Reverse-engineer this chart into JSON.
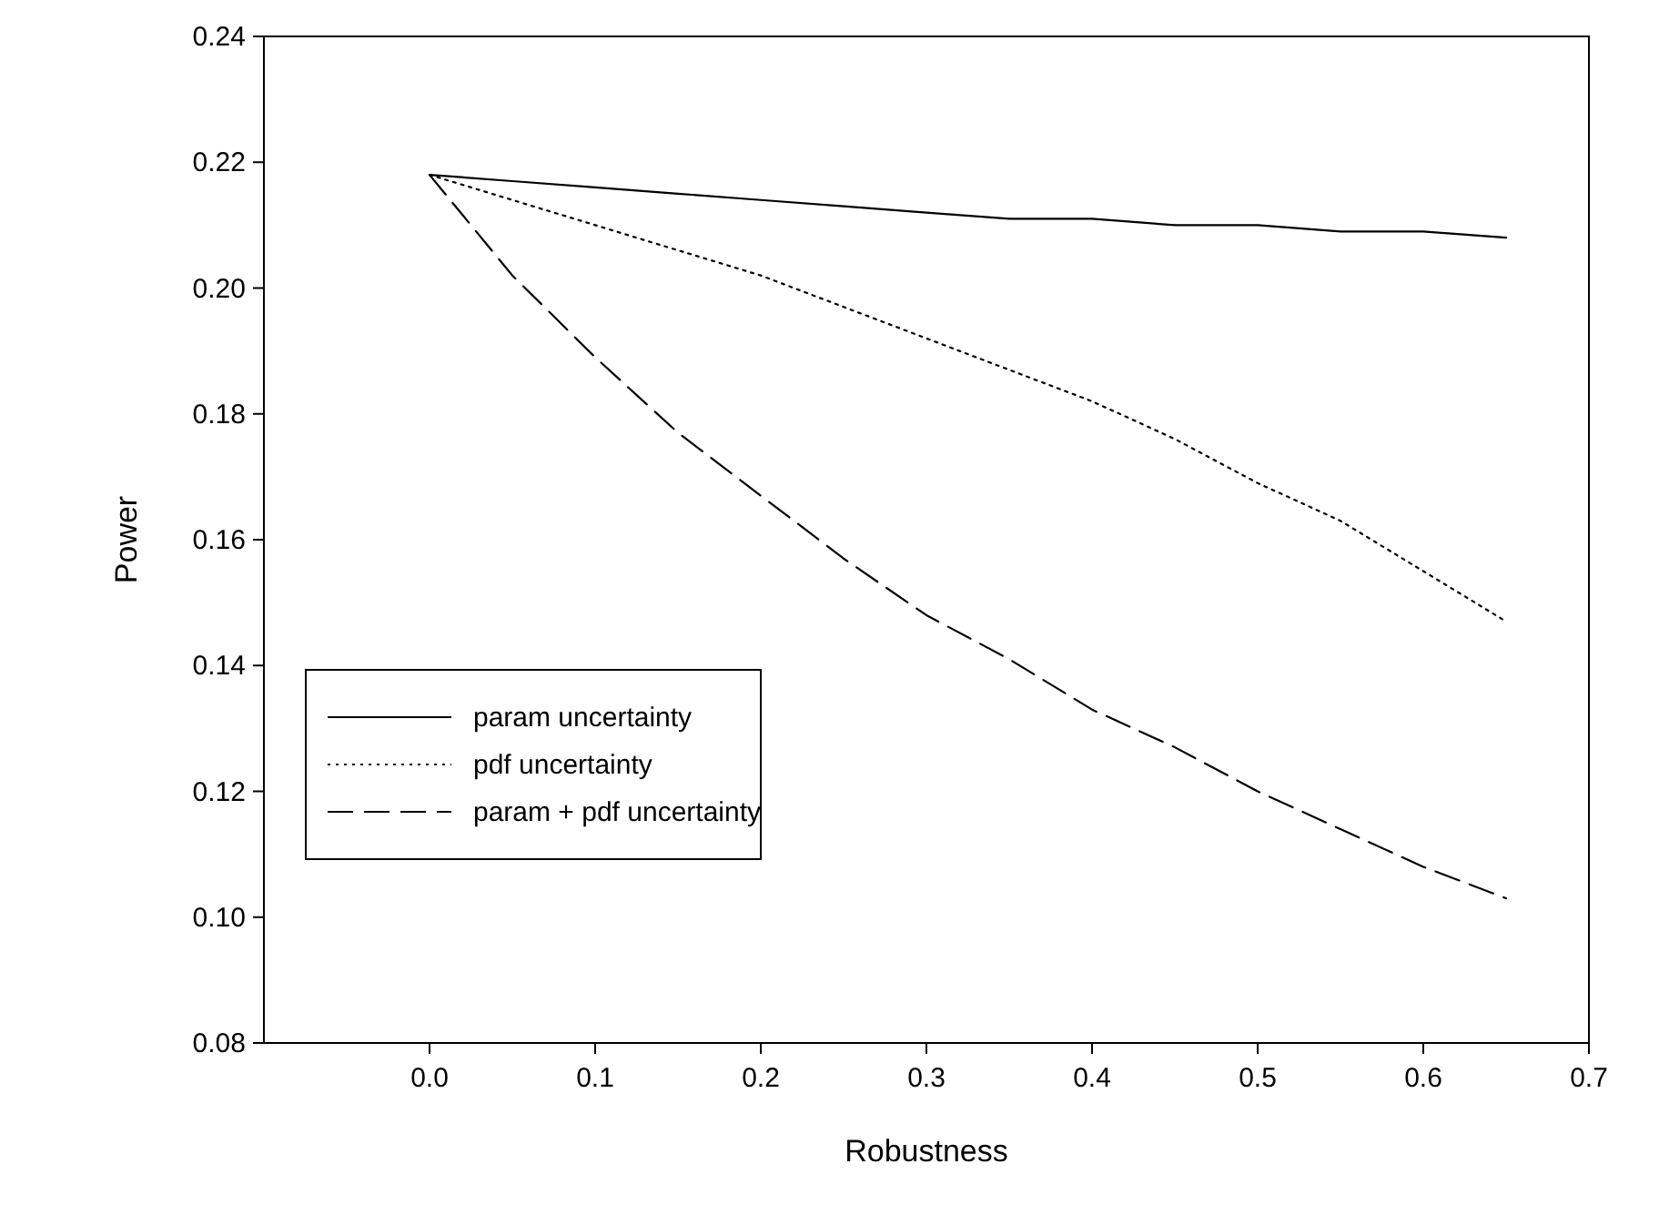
{
  "chart_data": {
    "type": "line",
    "xlabel": "Robustness",
    "ylabel": "Power",
    "xlim": [
      -0.1,
      0.7
    ],
    "xticks": [
      {
        "value": 0,
        "label": "0.0"
      },
      0.1,
      0.2,
      0.3,
      0.4,
      0.5,
      0.6,
      0.7
    ],
    "ylim": [
      0.08,
      0.24
    ],
    "yticks": [
      {
        "value": 0.08,
        "label": "0.08"
      },
      {
        "value": 0.1,
        "label": "0.10"
      },
      {
        "value": 0.12,
        "label": "0.12"
      },
      {
        "value": 0.14,
        "label": "0.14"
      },
      {
        "value": 0.16,
        "label": "0.16"
      },
      {
        "value": 0.18,
        "label": "0.18"
      },
      {
        "value": 0.2,
        "label": "0.20"
      },
      {
        "value": 0.22,
        "label": "0.22"
      },
      {
        "value": 0.24,
        "label": "0.24"
      }
    ],
    "x": [
      0,
      0.05,
      0.1,
      0.15,
      0.2,
      0.25,
      0.3,
      0.35,
      0.4,
      0.45,
      0.5,
      0.55,
      0.6,
      0.65
    ],
    "series": [
      {
        "name": "param uncertainty",
        "color": "#000000",
        "line_style": "solid",
        "values": [
          0.218,
          0.217,
          0.216,
          0.215,
          0.214,
          0.213,
          0.212,
          0.211,
          0.211,
          0.21,
          0.21,
          0.209,
          0.209,
          0.208
        ]
      },
      {
        "name": "pdf uncertainty",
        "color": "#000000",
        "line_style": "dotted",
        "values": [
          0.218,
          0.214,
          0.21,
          0.206,
          0.202,
          0.197,
          0.192,
          0.187,
          0.182,
          0.176,
          0.169,
          0.163,
          0.155,
          0.147
        ]
      },
      {
        "name": "param + pdf uncertainty",
        "color": "#000000",
        "line_style": "dashed",
        "values": [
          0.218,
          0.202,
          0.189,
          0.177,
          0.167,
          0.157,
          0.148,
          0.141,
          0.133,
          0.127,
          0.12,
          0.114,
          0.108,
          0.103
        ]
      }
    ],
    "legend": "bottom left",
    "grid": false,
    "marker": "none"
  }
}
